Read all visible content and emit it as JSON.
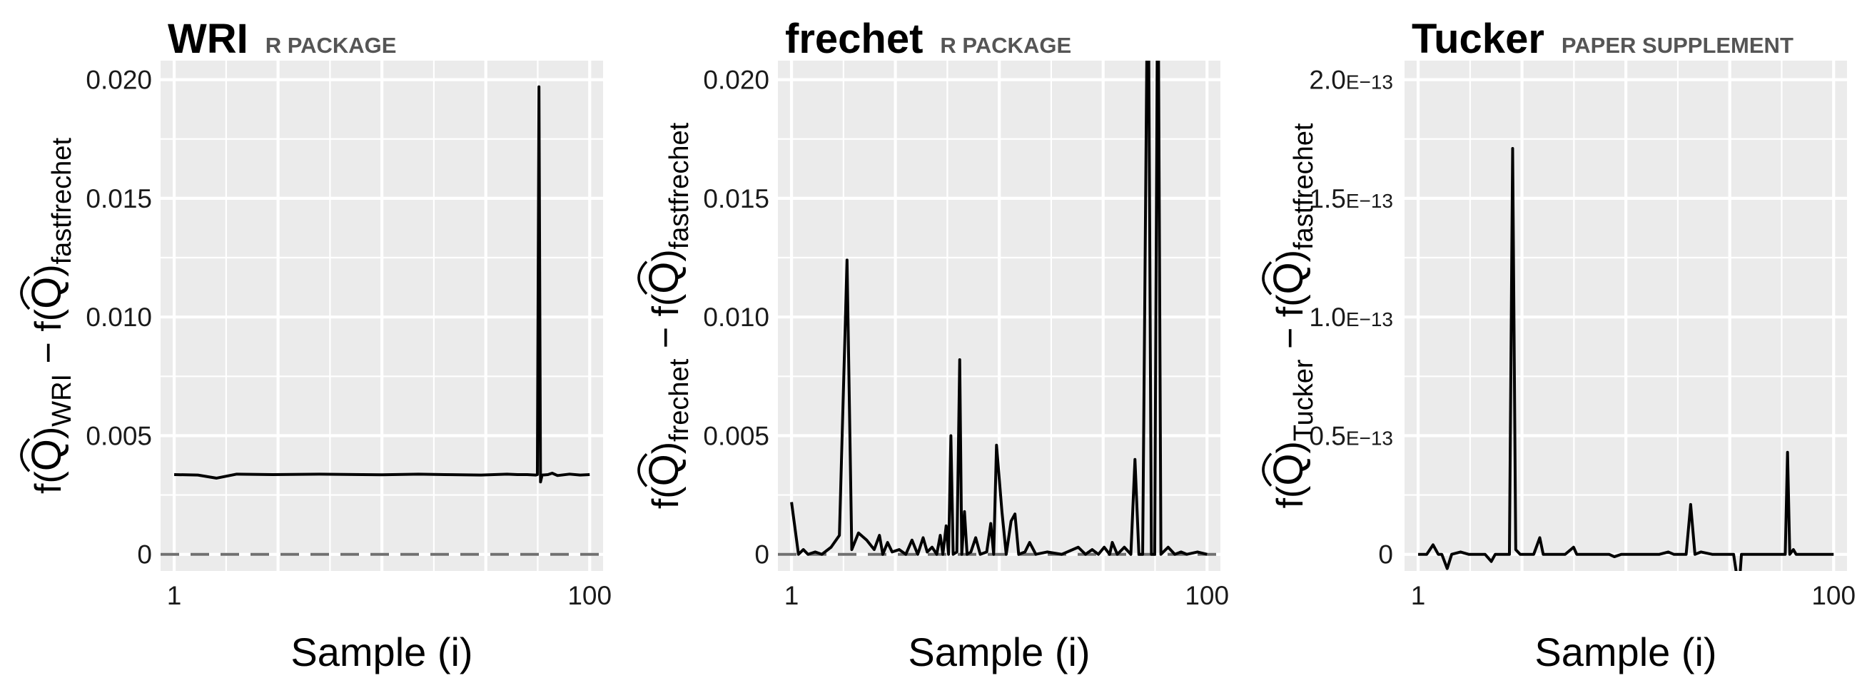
{
  "figure": {
    "background": "#ffffff",
    "panel_background": "#ebebeb",
    "grid_color": "#ffffff",
    "line_color": "#000000",
    "dashed_line_color": "#707070"
  },
  "chart_data": [
    {
      "type": "line",
      "title": "WRI",
      "subtitle": "R PACKAGE",
      "xlabel": "Sample (i)",
      "ylabel": "f(Q̂)WRI − f(Q̂)fastfrechet",
      "ylabel_parts": {
        "pre": "f(",
        "hat": "Q",
        "post1": ")",
        "sub1": "WRI",
        "mid": " − f(",
        "post2": ")",
        "sub2": "fastfrechet"
      },
      "x_scale": "log",
      "xlim": [
        0.86,
        116
      ],
      "ylim": [
        -0.0007,
        0.0208
      ],
      "x_ticks": [
        1,
        100
      ],
      "x_tick_labels": [
        "1",
        "100"
      ],
      "y_ticks": [
        0,
        0.005,
        0.01,
        0.015,
        0.02
      ],
      "y_tick_labels": [
        "0",
        "0.005",
        "0.010",
        "0.015",
        "0.020"
      ],
      "y_tick_format": "decimal",
      "grid": true,
      "reference_line": {
        "y": 0,
        "style": "dashed"
      },
      "series": [
        {
          "points": [
            [
              1,
              0.00336
            ],
            [
              1.3,
              0.00334
            ],
            [
              1.6,
              0.00321
            ],
            [
              2,
              0.00338
            ],
            [
              3,
              0.00336
            ],
            [
              5,
              0.00338
            ],
            [
              8,
              0.00336
            ],
            [
              10,
              0.00335
            ],
            [
              15,
              0.00338
            ],
            [
              20,
              0.00336
            ],
            [
              30,
              0.00334
            ],
            [
              40,
              0.00338
            ],
            [
              45,
              0.00336
            ],
            [
              50,
              0.00336
            ],
            [
              55,
              0.00334
            ],
            [
              56,
              0.00336
            ],
            [
              57,
              0.0197
            ],
            [
              58,
              0.00305
            ],
            [
              59,
              0.00334
            ],
            [
              63,
              0.00336
            ],
            [
              66,
              0.00342
            ],
            [
              70,
              0.00332
            ],
            [
              80,
              0.00338
            ],
            [
              90,
              0.00334
            ],
            [
              100,
              0.00336
            ]
          ]
        }
      ]
    },
    {
      "type": "line",
      "title": "frechet",
      "subtitle": "R PACKAGE",
      "xlabel": "Sample (i)",
      "ylabel": "f(Q̂)frechet − f(Q̂)fastfrechet",
      "ylabel_parts": {
        "pre": "f(",
        "hat": "Q",
        "post1": ")",
        "sub1": "frechet",
        "mid": " − f(",
        "post2": ")",
        "sub2": "fastfrechet"
      },
      "x_scale": "log",
      "xlim": [
        0.86,
        116
      ],
      "ylim": [
        -0.0007,
        0.0208
      ],
      "x_ticks": [
        1,
        100
      ],
      "x_tick_labels": [
        "1",
        "100"
      ],
      "y_ticks": [
        0,
        0.005,
        0.01,
        0.015,
        0.02
      ],
      "y_tick_labels": [
        "0",
        "0.005",
        "0.010",
        "0.015",
        "0.020"
      ],
      "y_tick_format": "decimal",
      "grid": true,
      "reference_line": {
        "y": 0,
        "style": "dashed"
      },
      "series": [
        {
          "points": [
            [
              1,
              0.0022
            ],
            [
              1.08,
              0.0
            ],
            [
              1.14,
              0.0002
            ],
            [
              1.2,
              0.0
            ],
            [
              1.3,
              0.0001
            ],
            [
              1.4,
              0.0
            ],
            [
              1.55,
              0.0003
            ],
            [
              1.7,
              0.0008
            ],
            [
              1.85,
              0.0124
            ],
            [
              1.95,
              0.0002
            ],
            [
              2.1,
              0.0009
            ],
            [
              2.3,
              0.0006
            ],
            [
              2.5,
              0.0002
            ],
            [
              2.65,
              0.0008
            ],
            [
              2.75,
              0.0
            ],
            [
              2.9,
              0.0005
            ],
            [
              3.05,
              0.0001
            ],
            [
              3.3,
              0.0002
            ],
            [
              3.55,
              0.0
            ],
            [
              3.8,
              0.0006
            ],
            [
              4.05,
              0.0
            ],
            [
              4.3,
              0.0007
            ],
            [
              4.5,
              0.0001
            ],
            [
              4.75,
              0.0003
            ],
            [
              5.0,
              0.0
            ],
            [
              5.2,
              0.0008
            ],
            [
              5.35,
              0.0
            ],
            [
              5.55,
              0.0012
            ],
            [
              5.7,
              0.0
            ],
            [
              5.85,
              0.005
            ],
            [
              6.0,
              0.0
            ],
            [
              6.25,
              0.0001
            ],
            [
              6.45,
              0.0082
            ],
            [
              6.6,
              0.0
            ],
            [
              6.8,
              0.0018
            ],
            [
              7.0,
              0.0
            ],
            [
              7.3,
              0.0001
            ],
            [
              7.7,
              0.0007
            ],
            [
              8.1,
              0.0
            ],
            [
              8.7,
              0.0001
            ],
            [
              9.1,
              0.0013
            ],
            [
              9.4,
              0.0
            ],
            [
              9.7,
              0.0046
            ],
            [
              10.3,
              0.0018
            ],
            [
              10.8,
              0.0
            ],
            [
              11.4,
              0.0014
            ],
            [
              11.9,
              0.0017
            ],
            [
              12.4,
              0.0
            ],
            [
              13.3,
              0.0001
            ],
            [
              14.0,
              0.0005
            ],
            [
              15.0,
              0.0
            ],
            [
              17.0,
              0.0001
            ],
            [
              20.0,
              0.0
            ],
            [
              24.0,
              0.0003
            ],
            [
              26.0,
              0.0
            ],
            [
              28.0,
              0.0002
            ],
            [
              30.0,
              0.0
            ],
            [
              32.0,
              0.0003
            ],
            [
              34.0,
              0.0
            ],
            [
              35.0,
              0.0005
            ],
            [
              37.0,
              0.0
            ],
            [
              40.0,
              0.0003
            ],
            [
              43.0,
              0.0
            ],
            [
              45.0,
              0.004
            ],
            [
              47.0,
              0.0
            ],
            [
              49.0,
              0.0
            ],
            [
              52.0,
              0.027
            ],
            [
              54.0,
              0.0
            ],
            [
              56.0,
              0.0
            ],
            [
              58.0,
              0.027
            ],
            [
              60.0,
              0.0
            ],
            [
              65.0,
              0.0003
            ],
            [
              70.0,
              0.0
            ],
            [
              75.0,
              0.0001
            ],
            [
              80.0,
              0.0
            ],
            [
              90.0,
              0.0001
            ],
            [
              100.0,
              0.0
            ]
          ]
        }
      ]
    },
    {
      "type": "line",
      "title": "Tucker",
      "subtitle": "PAPER SUPPLEMENT",
      "xlabel": "Sample (i)",
      "ylabel": "f(Q̂)Tucker − f(Q̂)fastfrechet",
      "ylabel_parts": {
        "pre": "f(",
        "hat": "Q",
        "post1": ")",
        "sub1": "Tucker",
        "mid": " − f(",
        "post2": ")",
        "sub2": "fastfrechet"
      },
      "x_scale": "log",
      "xlim": [
        0.86,
        116
      ],
      "ylim": [
        -7e-15,
        2.08e-13
      ],
      "x_ticks": [
        1,
        100
      ],
      "x_tick_labels": [
        "1",
        "100"
      ],
      "y_ticks": [
        0,
        5e-14,
        1e-13,
        1.5e-13,
        2e-13
      ],
      "y_tick_labels": [
        {
          "mant": "0",
          "exp": ""
        },
        {
          "mant": "0.5",
          "exp": "E−13"
        },
        {
          "mant": "1.0",
          "exp": "E−13"
        },
        {
          "mant": "1.5",
          "exp": "E−13"
        },
        {
          "mant": "2.0",
          "exp": "E−13"
        }
      ],
      "y_tick_format": "scientific",
      "grid": true,
      "series": [
        {
          "points": [
            [
              1,
              0.0
            ],
            [
              1.1,
              0.0
            ],
            [
              1.18,
              4e-15
            ],
            [
              1.25,
              0.0
            ],
            [
              1.3,
              0.0
            ],
            [
              1.38,
              -6e-15
            ],
            [
              1.45,
              0.0
            ],
            [
              1.6,
              1e-15
            ],
            [
              1.75,
              0.0
            ],
            [
              2.1,
              0.0
            ],
            [
              2.25,
              -3e-15
            ],
            [
              2.35,
              0.0
            ],
            [
              2.6,
              0.0
            ],
            [
              2.75,
              0.0
            ],
            [
              2.85,
              1.71e-13
            ],
            [
              2.95,
              2e-15
            ],
            [
              3.1,
              0.0
            ],
            [
              3.6,
              0.0
            ],
            [
              3.85,
              7e-15
            ],
            [
              4.0,
              0.0
            ],
            [
              4.4,
              0.0
            ],
            [
              4.8,
              0.0
            ],
            [
              5.1,
              0.0
            ],
            [
              5.6,
              3e-15
            ],
            [
              5.8,
              0.0
            ],
            [
              6.5,
              0.0
            ],
            [
              7.0,
              0.0
            ],
            [
              7.6,
              0.0
            ],
            [
              8.3,
              0.0
            ],
            [
              8.8,
              -1e-15
            ],
            [
              9.5,
              0.0
            ],
            [
              11.0,
              0.0
            ],
            [
              13.0,
              0.0
            ],
            [
              14.5,
              0.0
            ],
            [
              16.0,
              1e-15
            ],
            [
              17.0,
              0.0
            ],
            [
              18.5,
              0.0
            ],
            [
              19.5,
              0.0
            ],
            [
              20.5,
              2.1e-14
            ],
            [
              21.5,
              0.0
            ],
            [
              23.0,
              1e-15
            ],
            [
              26.0,
              0.0
            ],
            [
              30.0,
              0.0
            ],
            [
              33.0,
              0.0
            ],
            [
              35.0,
              -1.5e-14
            ],
            [
              36.0,
              0.0
            ],
            [
              40.0,
              0.0
            ],
            [
              44.0,
              0.0
            ],
            [
              48.0,
              0.0
            ],
            [
              55.0,
              0.0
            ],
            [
              58.5,
              0.0
            ],
            [
              60.0,
              4.3e-14
            ],
            [
              61.5,
              0.0
            ],
            [
              64.0,
              2e-15
            ],
            [
              66.0,
              0.0
            ],
            [
              75.0,
              0.0
            ],
            [
              85.0,
              0.0
            ],
            [
              100.0,
              0.0
            ]
          ]
        }
      ]
    }
  ]
}
